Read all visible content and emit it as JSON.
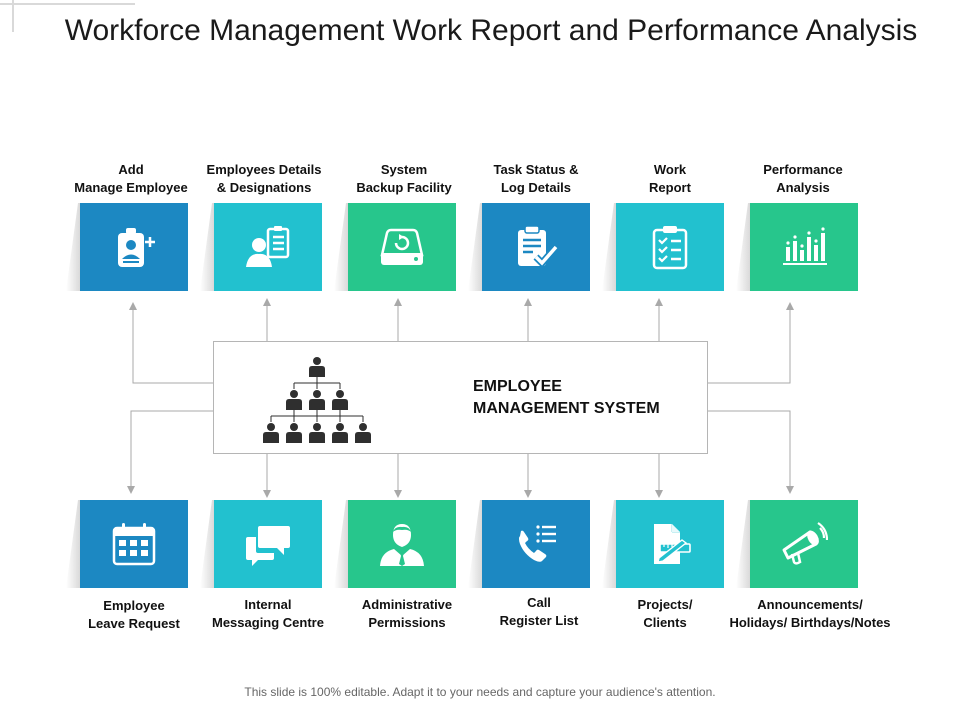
{
  "slide": {
    "title": "Workforce Management Work Report and Performance Analysis",
    "footer": "This slide is 100% editable. Adapt it to your needs and capture your audience's attention."
  },
  "center": {
    "title": "EMPLOYEE MANAGEMENT SYSTEM",
    "icon": "org-chart-icon"
  },
  "colors": {
    "blue": "#1c88c2",
    "teal": "#22c1cf",
    "green": "#27c68c",
    "connector": "#a9a9a9"
  },
  "top_modules": [
    {
      "label": "Add\nManage Employee",
      "icon": "id-badge-add-icon",
      "color": "#1c88c2"
    },
    {
      "label": "Employees Details\n& Designations",
      "icon": "employee-details-icon",
      "color": "#22c1cf"
    },
    {
      "label": "System\nBackup Facility",
      "icon": "backup-drive-icon",
      "color": "#27c68c"
    },
    {
      "label": "Task Status &\nLog Details",
      "icon": "clipboard-check-icon",
      "color": "#1c88c2"
    },
    {
      "label": "Work\nReport",
      "icon": "checklist-icon",
      "color": "#22c1cf"
    },
    {
      "label": "Performance\nAnalysis",
      "icon": "bar-chart-icon",
      "color": "#27c68c"
    }
  ],
  "bottom_modules": [
    {
      "label": "Employee\nLeave Request",
      "icon": "calendar-icon",
      "color": "#1c88c2"
    },
    {
      "label": "Internal\nMessaging Centre",
      "icon": "chat-bubbles-icon",
      "color": "#22c1cf"
    },
    {
      "label": "Administrative\nPermissions",
      "icon": "administrator-icon",
      "color": "#27c68c"
    },
    {
      "label": "Call\nRegister List",
      "icon": "phone-list-icon",
      "color": "#1c88c2"
    },
    {
      "label": "Projects/\nClients",
      "icon": "project-document-icon",
      "color": "#22c1cf"
    },
    {
      "label": "Announcements/\nHolidays/ Birthdays/Notes",
      "icon": "megaphone-icon",
      "color": "#27c68c"
    }
  ]
}
